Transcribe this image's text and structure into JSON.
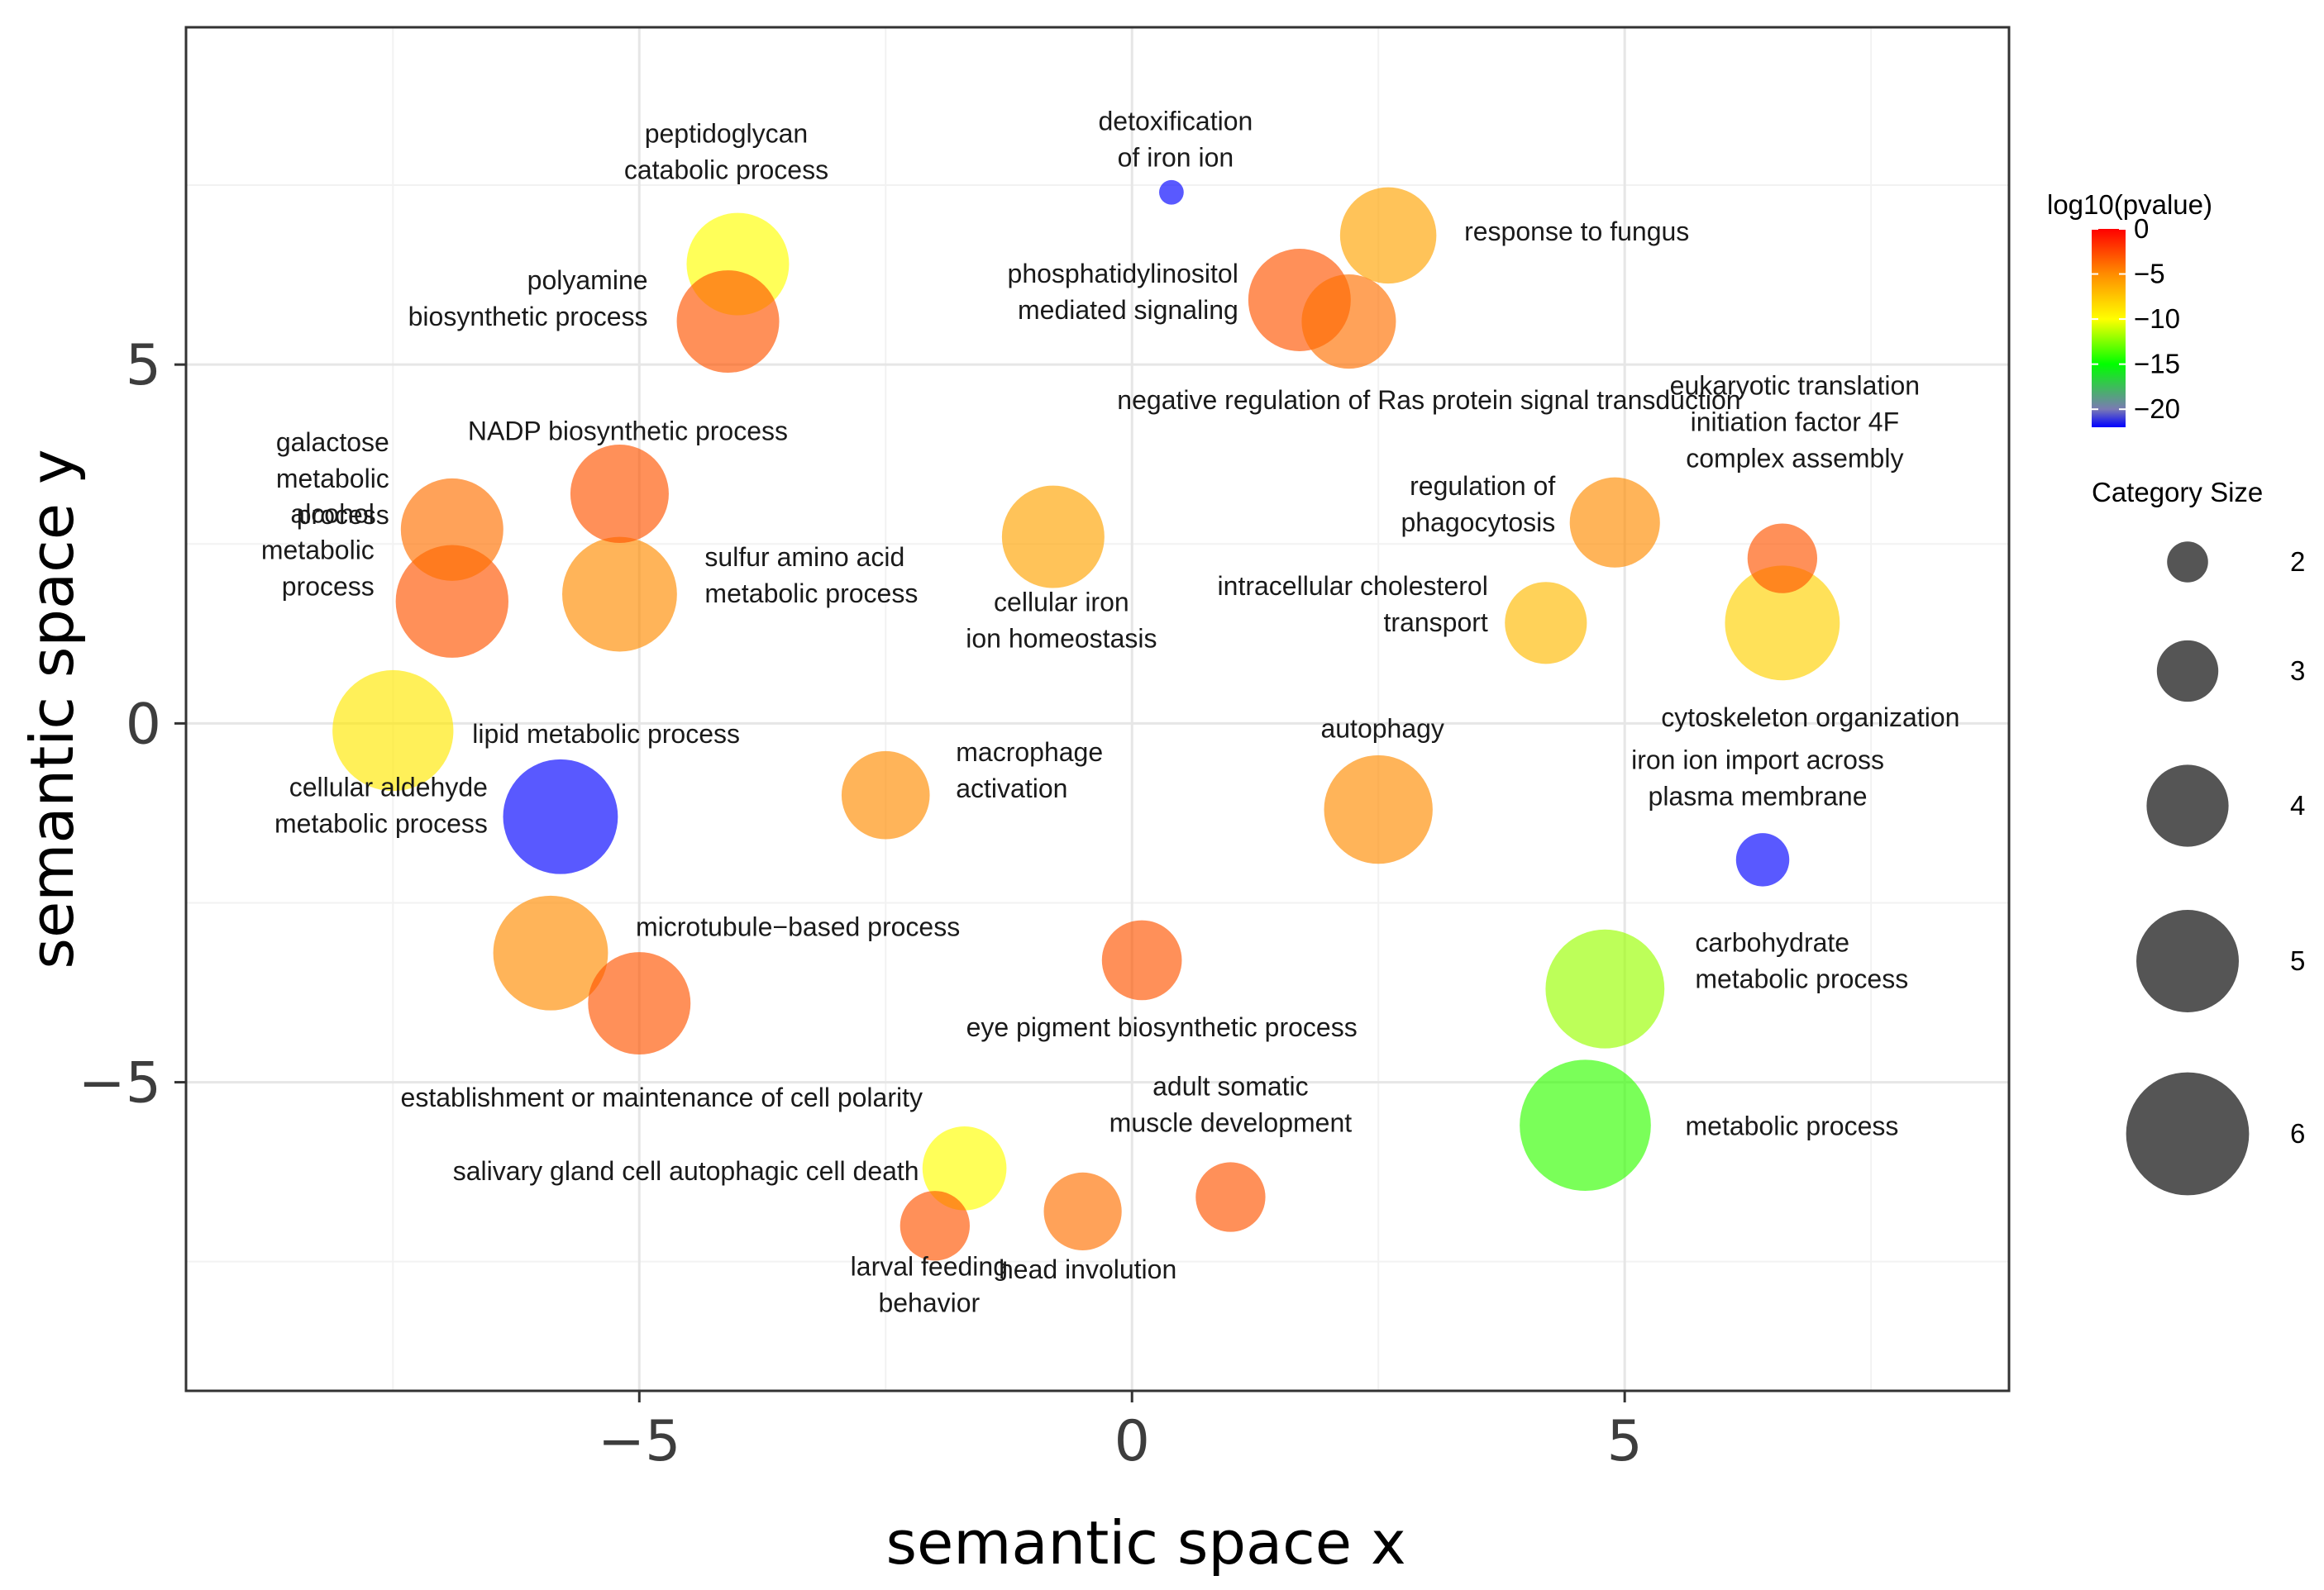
{
  "chart_data": {
    "type": "scatter",
    "xlabel": "semantic space x",
    "ylabel": "semantic space y",
    "xlim": [
      -9.6,
      8.9
    ],
    "ylim": [
      -9.3,
      9.7
    ],
    "x_ticks": [
      -5,
      0,
      5
    ],
    "y_ticks": [
      -5,
      0,
      5
    ],
    "x_tick_labels": [
      "−5",
      "0",
      "5"
    ],
    "y_tick_labels": [
      "−5",
      "0",
      "5"
    ],
    "grid": true,
    "color_legend": {
      "title": "log10(pvalue)",
      "range": [
        -22,
        0
      ],
      "ticks": [
        0,
        -5,
        -10,
        -15,
        -20
      ],
      "tick_labels": [
        "0",
        "−5",
        "−10",
        "−15",
        "−20"
      ],
      "stops": [
        {
          "value": 0,
          "color": "#ff0000"
        },
        {
          "value": -5,
          "color": "#ff8c00"
        },
        {
          "value": -10,
          "color": "#ffff00"
        },
        {
          "value": -15,
          "color": "#00ff00"
        },
        {
          "value": -20,
          "color": "#7a7ab4"
        },
        {
          "value": -22,
          "color": "#0000ff"
        }
      ]
    },
    "size_legend": {
      "title": "Category Size",
      "position": "right",
      "entries": [
        {
          "label": "2",
          "size": 2
        },
        {
          "label": "3",
          "size": 3
        },
        {
          "label": "4",
          "size": 4
        },
        {
          "label": "5",
          "size": 5
        },
        {
          "label": "6",
          "size": 6
        }
      ],
      "color": "#555555"
    },
    "points": [
      {
        "lines": [
          "peptidoglycan",
          "catabolic process"
        ],
        "x": -4.0,
        "y": 6.4,
        "size": 5.0,
        "log10p": -10
      },
      {
        "lines": [
          "polyamine",
          "biosynthetic process"
        ],
        "x": -4.1,
        "y": 5.6,
        "size": 5.0,
        "log10p": -3
      },
      {
        "lines": [
          "detoxification",
          "of iron ion"
        ],
        "x": 0.4,
        "y": 7.4,
        "size": 1.2,
        "log10p": -22
      },
      {
        "lines": [
          "response to fungus"
        ],
        "x": 2.6,
        "y": 6.8,
        "size": 4.7,
        "log10p": -6
      },
      {
        "lines": [
          "phosphatidylinositol",
          "mediated signaling"
        ],
        "x": 1.7,
        "y": 5.9,
        "size": 5.0,
        "log10p": -3
      },
      {
        "lines": [
          "negative regulation of Ras protein signal transduction"
        ],
        "x": 2.2,
        "y": 5.6,
        "size": 4.6,
        "log10p": -4
      },
      {
        "lines": [
          "NADP biosynthetic process"
        ],
        "x": -5.2,
        "y": 3.2,
        "size": 4.8,
        "log10p": -3
      },
      {
        "lines": [
          "galactose",
          "metabolic",
          "process"
        ],
        "x": -6.9,
        "y": 2.7,
        "size": 5.0,
        "log10p": -4
      },
      {
        "lines": [
          "alcohol",
          "metabolic",
          "process"
        ],
        "x": -6.9,
        "y": 1.7,
        "size": 5.5,
        "log10p": -3
      },
      {
        "lines": [
          "sulfur amino acid",
          "metabolic process"
        ],
        "x": -5.2,
        "y": 1.8,
        "size": 5.6,
        "log10p": -5
      },
      {
        "lines": [
          "cellular iron",
          "ion homeostasis"
        ],
        "x": -0.8,
        "y": 2.6,
        "size": 5.0,
        "log10p": -6
      },
      {
        "lines": [
          "regulation of",
          "phagocytosis"
        ],
        "x": 4.9,
        "y": 2.8,
        "size": 4.4,
        "log10p": -5
      },
      {
        "lines": [
          "eukaryotic translation",
          "initiation factor 4F",
          "complex assembly"
        ],
        "x": 6.6,
        "y": 2.3,
        "size": 3.4,
        "log10p": -3
      },
      {
        "lines": [
          "intracellular cholesterol",
          "transport"
        ],
        "x": 4.2,
        "y": 1.4,
        "size": 4.0,
        "log10p": -7
      },
      {
        "lines": [
          "cytoskeleton organization"
        ],
        "x": 6.6,
        "y": 1.4,
        "size": 5.6,
        "log10p": -8
      },
      {
        "lines": [
          "lipid metabolic process"
        ],
        "x": -7.5,
        "y": -0.1,
        "size": 5.9,
        "log10p": -9
      },
      {
        "lines": [
          "cellular aldehyde",
          "metabolic process"
        ],
        "x": -5.8,
        "y": -1.3,
        "size": 5.6,
        "log10p": -22
      },
      {
        "lines": [
          "macrophage",
          "activation"
        ],
        "x": -2.5,
        "y": -1.0,
        "size": 4.3,
        "log10p": -5
      },
      {
        "lines": [
          "autophagy"
        ],
        "x": 2.5,
        "y": -1.2,
        "size": 5.3,
        "log10p": -5
      },
      {
        "lines": [
          "iron ion import across",
          "plasma membrane"
        ],
        "x": 6.4,
        "y": -1.9,
        "size": 2.6,
        "log10p": -22
      },
      {
        "lines": [
          "microtubule−based process"
        ],
        "x": -5.9,
        "y": -3.2,
        "size": 5.6,
        "log10p": -5
      },
      {
        "lines": [
          "establishment or maintenance of cell polarity"
        ],
        "x": -5.0,
        "y": -3.9,
        "size": 5.0,
        "log10p": -3
      },
      {
        "lines": [
          "eye pigment biosynthetic process"
        ],
        "x": 0.1,
        "y": -3.3,
        "size": 3.9,
        "log10p": -3
      },
      {
        "lines": [
          "carbohydrate",
          "metabolic process"
        ],
        "x": 4.8,
        "y": -3.7,
        "size": 5.8,
        "log10p": -12
      },
      {
        "lines": [
          "metabolic process"
        ],
        "x": 4.6,
        "y": -5.6,
        "size": 6.4,
        "log10p": -14
      },
      {
        "lines": [
          "salivary gland cell autophagic cell death"
        ],
        "x": -1.7,
        "y": -6.2,
        "size": 4.1,
        "log10p": -10
      },
      {
        "lines": [
          "adult somatic",
          "muscle development"
        ],
        "x": 1.0,
        "y": -6.6,
        "size": 3.4,
        "log10p": -3
      },
      {
        "lines": [
          "head involution"
        ],
        "x": -0.5,
        "y": -6.8,
        "size": 3.8,
        "log10p": -4
      },
      {
        "lines": [
          "larval feeding",
          "behavior"
        ],
        "x": -2.0,
        "y": -7.0,
        "size": 3.4,
        "log10p": -3
      }
    ]
  }
}
